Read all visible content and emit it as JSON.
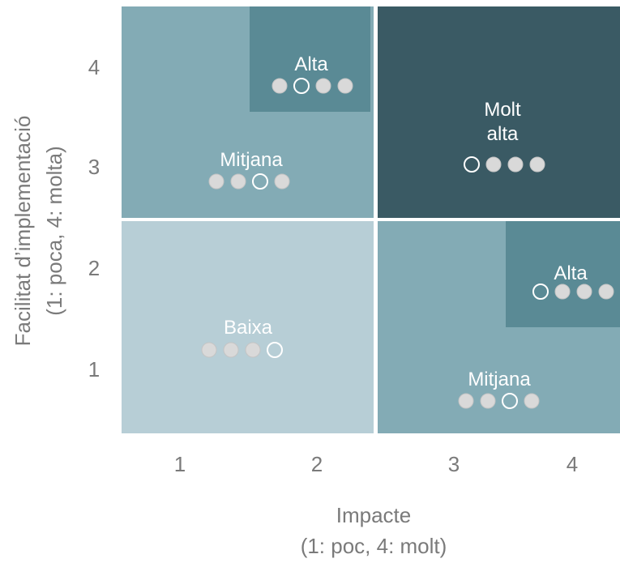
{
  "chart_data": {
    "type": "matrix",
    "xlabel": [
      "Impacte",
      "(1: poc, 4: molt)"
    ],
    "ylabel": [
      "Facilitat d’implementació",
      "(1: poca, 4: molta)"
    ],
    "x_ticks": [
      "1",
      "2",
      "3",
      "4"
    ],
    "y_ticks": [
      "1",
      "2",
      "3",
      "4"
    ],
    "regions": [
      {
        "label": [
          "Baixa"
        ],
        "dots": [
          1,
          1,
          1,
          0
        ],
        "color": "#b7ced6"
      },
      {
        "label": [
          "Mitjana"
        ],
        "dots": [
          1,
          1,
          0,
          1
        ],
        "color": "#83abb5"
      },
      {
        "label": [
          "Alta"
        ],
        "dots": [
          1,
          0,
          1,
          1
        ],
        "color": "#5a8a95"
      },
      {
        "label": [
          "Molt",
          "alta"
        ],
        "dots": [
          0,
          1,
          1,
          1
        ],
        "color": "#3a5a64"
      },
      {
        "label": [
          "Mitjana"
        ],
        "dots": [
          1,
          1,
          0,
          1
        ],
        "color": "#83abb5"
      },
      {
        "label": [
          "Alta"
        ],
        "dots": [
          0,
          1,
          1,
          1
        ],
        "color": "#5a8a95"
      }
    ]
  }
}
